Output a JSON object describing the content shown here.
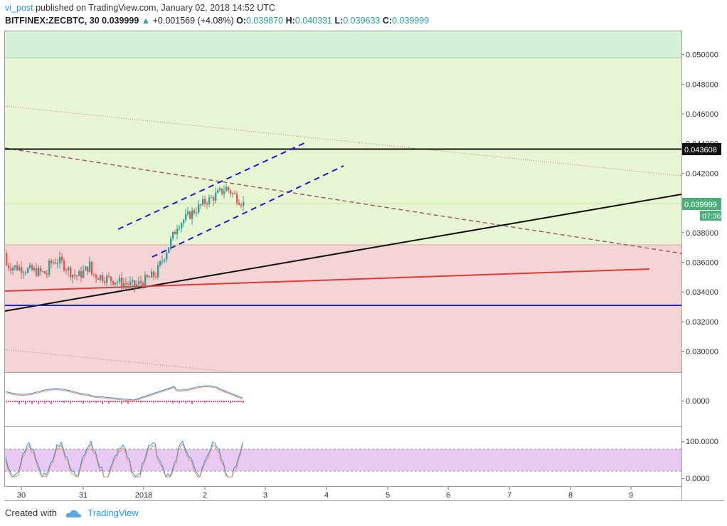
{
  "header": {
    "user": "vi_post",
    "published_text": "published on TradingView.com, January 02, 2018 14:52 UTC",
    "symbol": "BITFINEX:ZECBTC, 30",
    "last": "0.039999",
    "change": "+0.001569 (+4.08%)",
    "o_label": "O:",
    "o_value": "0.039870",
    "h_label": "H:",
    "h_value": "0.040331",
    "l_label": "L:",
    "l_value": "0.039633",
    "c_label": "C:",
    "c_value": "0.039999"
  },
  "price_axis": {
    "ticks": [
      "0.050000",
      "0.048000",
      "0.046000",
      "0.044000",
      "0.042000",
      "0.040000",
      "0.038000",
      "0.036000",
      "0.034000",
      "0.032000",
      "0.030000"
    ],
    "tick_values": [
      0.05,
      0.048,
      0.046,
      0.044,
      0.042,
      0.04,
      0.038,
      0.036,
      0.034,
      0.032,
      0.03
    ],
    "level_label": "0.043608",
    "level_value": 0.043608,
    "current_label": "0.039999",
    "current_value": 0.039999,
    "countdown": "07:36"
  },
  "macd_axis": {
    "label": "0.0000"
  },
  "stoch_axis": {
    "labels": [
      "100.0000",
      "0.0000"
    ]
  },
  "time_axis": {
    "labels": [
      "30",
      "31",
      "2018",
      "2",
      "3",
      "4",
      "5",
      "6",
      "7",
      "8",
      "9"
    ]
  },
  "zones": {
    "top_zone_color": "#d5f2d8",
    "upper_zone_color": "#e8f5d3",
    "lower_zone_color": "#f4d4d4"
  },
  "colors": {
    "up": "#26a69a",
    "down": "#ef5350",
    "channel": "#1a1adb",
    "support_red": "#e53935",
    "support_blue": "#2222d0",
    "trend_black": "#111111",
    "resistance_dashed": "#9c5c6e",
    "stoch_band": "#e7c9f2",
    "macd_line": "#2196f3",
    "signal_line": "#ff8a50",
    "histogram": "#d81b60"
  },
  "footer": {
    "created_with": "Created with",
    "brand": "TradingView"
  }
}
